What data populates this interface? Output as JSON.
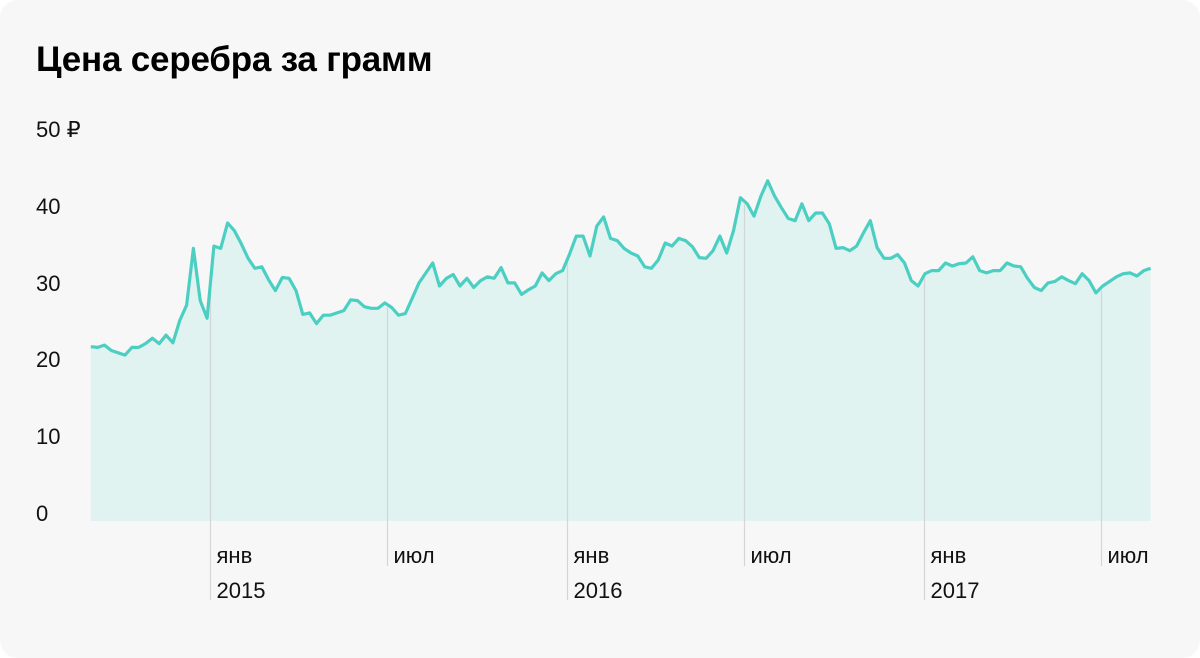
{
  "chart_data": {
    "type": "area",
    "title": "Цена серебра за грамм",
    "ylabel": "",
    "xlabel": "",
    "y_unit": "₽",
    "ylim": [
      0,
      50
    ],
    "yticks": [
      {
        "value": 50,
        "label": "50 ₽"
      },
      {
        "value": 40,
        "label": "40"
      },
      {
        "value": 30,
        "label": "30"
      },
      {
        "value": 20,
        "label": "20"
      },
      {
        "value": 10,
        "label": "10"
      },
      {
        "value": 0,
        "label": "0"
      }
    ],
    "xticks": [
      {
        "date": "2015-01-01",
        "label": "янв",
        "year": "2015"
      },
      {
        "date": "2015-07-01",
        "label": "июл",
        "year": ""
      },
      {
        "date": "2016-01-01",
        "label": "янв",
        "year": "2016"
      },
      {
        "date": "2016-07-01",
        "label": "июл",
        "year": ""
      },
      {
        "date": "2017-01-01",
        "label": "янв",
        "year": "2017"
      },
      {
        "date": "2017-07-01",
        "label": "июл",
        "year": ""
      }
    ],
    "grid": false,
    "series_start_date": "2014-09-01",
    "series_step_days": 7,
    "values": [
      22.7,
      22.6,
      22.9,
      22.2,
      21.9,
      21.6,
      22.6,
      22.6,
      23.1,
      23.8,
      23.1,
      24.2,
      23.2,
      26.1,
      28.1,
      35.5,
      28.7,
      26.4,
      35.8,
      35.5,
      38.8,
      37.8,
      36.1,
      34.2,
      32.9,
      33.1,
      31.4,
      30.0,
      31.7,
      31.6,
      30.0,
      26.9,
      27.1,
      25.7,
      26.8,
      26.8,
      27.1,
      27.4,
      28.8,
      28.7,
      27.9,
      27.7,
      27.7,
      28.4,
      27.8,
      26.8,
      27.0,
      29.0,
      31.0,
      32.3,
      33.6,
      30.6,
      31.6,
      32.1,
      30.6,
      31.6,
      30.4,
      31.3,
      31.8,
      31.6,
      33.0,
      31.0,
      31.0,
      29.5,
      30.1,
      30.6,
      32.3,
      31.3,
      32.2,
      32.6,
      34.7,
      37.1,
      37.1,
      34.5,
      38.4,
      39.6,
      36.8,
      36.5,
      35.5,
      34.9,
      34.5,
      33.1,
      32.9,
      34.0,
      36.2,
      35.8,
      36.8,
      36.5,
      35.7,
      34.3,
      34.2,
      35.2,
      37.1,
      34.9,
      37.8,
      42.1,
      41.3,
      39.7,
      42.3,
      44.3,
      42.3,
      40.8,
      39.4,
      39.1,
      41.3,
      39.1,
      40.1,
      40.1,
      38.7,
      35.5,
      35.6,
      35.2,
      35.8,
      37.5,
      39.1,
      35.6,
      34.2,
      34.2,
      34.7,
      33.6,
      31.3,
      30.6,
      32.2,
      32.6,
      32.6,
      33.6,
      33.2,
      33.5,
      33.6,
      34.4,
      32.6,
      32.3,
      32.6,
      32.6,
      33.6,
      33.2,
      33.1,
      31.6,
      30.4,
      30.0,
      31.0,
      31.2,
      31.8,
      31.3,
      30.9,
      32.2,
      31.3,
      29.7,
      30.6,
      31.2,
      31.8,
      32.2,
      32.3,
      31.9,
      32.6,
      32.9
    ],
    "colors": {
      "line": "#4ccfc2",
      "fill": "#e0f3f1",
      "tick_line": "#d2d6d6",
      "background": "#f7f7f7"
    }
  }
}
